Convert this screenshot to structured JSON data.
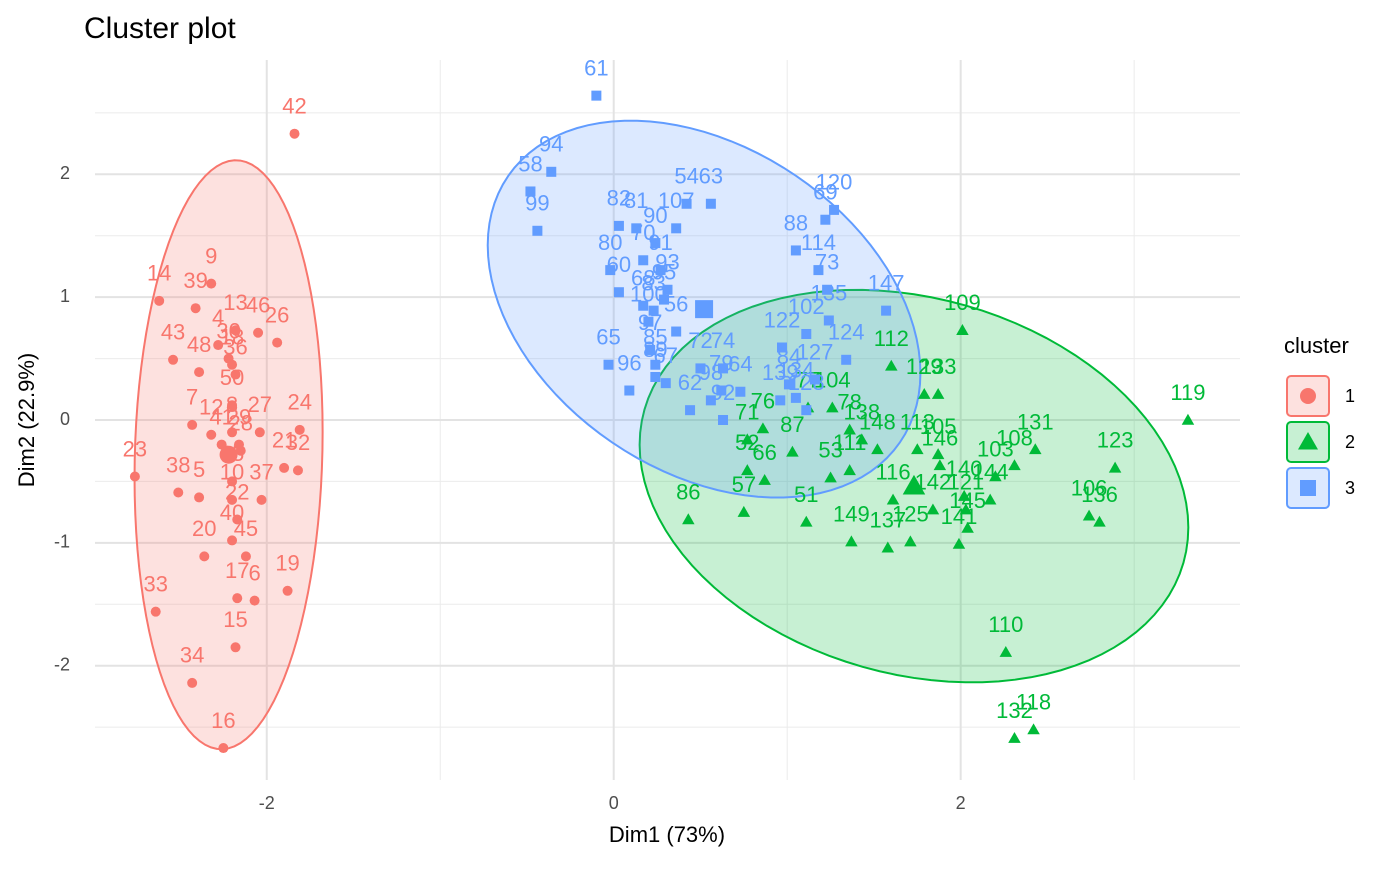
{
  "chart_data": {
    "type": "scatter",
    "title": "Cluster plot",
    "x_label": "Dim1 (73%)",
    "y_label": "Dim2 (22.9%)",
    "xlim": [
      -2.99,
      3.61
    ],
    "ylim": [
      -2.93,
      2.93
    ],
    "xticks": [
      -2,
      0,
      2
    ],
    "yticks": [
      -2,
      -1,
      0,
      1,
      2
    ],
    "grid": true,
    "legend_title": "cluster",
    "legend_position": "right",
    "series": [
      {
        "name": "1",
        "color": "#F8766D",
        "shape": "circle",
        "labels": [
          "42",
          "9",
          "14",
          "39",
          "13",
          "46",
          "26",
          "43",
          "4",
          "48",
          "30",
          "36",
          "7",
          "50",
          "12",
          "24",
          "27",
          "23",
          "38",
          "5",
          "37",
          "32",
          "21",
          "22",
          "40",
          "20",
          "45",
          "17",
          "6",
          "19",
          "33",
          "15",
          "34",
          "16",
          "18",
          "28",
          "41",
          "8",
          "10",
          "35",
          "29"
        ],
        "x": [
          -1.84,
          -2.32,
          -2.62,
          -2.41,
          -2.18,
          -2.05,
          -1.94,
          -2.54,
          -2.28,
          -2.39,
          -2.22,
          -2.18,
          -2.43,
          -2.2,
          -2.32,
          -1.81,
          -2.04,
          -2.76,
          -2.51,
          -2.39,
          -2.03,
          -1.82,
          -1.9,
          -2.17,
          -2.2,
          -2.36,
          -2.12,
          -2.17,
          -2.07,
          -1.88,
          -2.64,
          -2.18,
          -2.43,
          -2.25,
          -2.2,
          -2.15,
          -2.26,
          -2.2,
          -2.2,
          -2.2,
          -2.16
        ],
        "values": [
          2.33,
          1.11,
          0.97,
          0.91,
          0.73,
          0.71,
          0.63,
          0.49,
          0.61,
          0.39,
          0.5,
          0.37,
          -0.04,
          0.12,
          -0.12,
          -0.08,
          -0.1,
          -0.46,
          -0.59,
          -0.63,
          -0.65,
          -0.41,
          -0.39,
          -0.81,
          -0.98,
          -1.11,
          -1.11,
          -1.45,
          -1.47,
          -1.39,
          -1.56,
          -1.85,
          -2.14,
          -2.67,
          0.45,
          -0.25,
          -0.2,
          -0.1,
          -0.65,
          -0.5,
          -0.2
        ]
      },
      {
        "name": "2",
        "color": "#00BA38",
        "shape": "triangle",
        "labels": [
          "109",
          "119",
          "131",
          "123",
          "108",
          "106",
          "136",
          "110",
          "118",
          "132",
          "112",
          "129",
          "133",
          "104",
          "77",
          "71",
          "76",
          "52",
          "66",
          "87",
          "57",
          "86",
          "51",
          "53",
          "111",
          "138",
          "78",
          "148",
          "116",
          "149",
          "137",
          "125",
          "105",
          "146",
          "103",
          "140",
          "144",
          "121",
          "145",
          "141",
          "142",
          "113"
        ],
        "x": [
          2.01,
          3.31,
          2.43,
          2.89,
          2.31,
          2.74,
          2.8,
          2.26,
          2.42,
          2.31,
          1.6,
          1.79,
          1.87,
          1.26,
          1.12,
          0.77,
          0.86,
          0.77,
          0.87,
          1.03,
          0.75,
          0.43,
          1.11,
          1.25,
          1.36,
          1.43,
          1.36,
          1.52,
          1.61,
          1.37,
          1.58,
          1.71,
          1.87,
          1.88,
          2.2,
          2.02,
          2.17,
          2.03,
          2.04,
          1.99,
          1.84,
          1.75
        ],
        "values": [
          0.73,
          0.0,
          -0.24,
          -0.39,
          -0.37,
          -0.78,
          -0.83,
          -1.89,
          -2.52,
          -2.59,
          0.44,
          0.21,
          0.21,
          0.1,
          0.1,
          -0.16,
          -0.07,
          -0.41,
          -0.49,
          -0.26,
          -0.75,
          -0.81,
          -0.83,
          -0.47,
          -0.41,
          -0.16,
          -0.08,
          -0.24,
          -0.65,
          -0.99,
          -1.04,
          -0.99,
          -0.28,
          -0.37,
          -0.46,
          -0.62,
          -0.65,
          -0.73,
          -0.88,
          -1.01,
          -0.73,
          -0.24
        ]
      },
      {
        "name": "3",
        "color": "#619CFF",
        "shape": "square",
        "labels": [
          "61",
          "94",
          "58",
          "99",
          "82",
          "81",
          "107",
          "54",
          "63",
          "120",
          "69",
          "88",
          "114",
          "90",
          "70",
          "80",
          "60",
          "91",
          "93",
          "68",
          "83",
          "95",
          "100",
          "56",
          "65",
          "97",
          "85",
          "67",
          "96",
          "89",
          "62",
          "72",
          "74",
          "79",
          "64",
          "98",
          "92",
          "147",
          "122",
          "102",
          "135",
          "124",
          "127",
          "84",
          "134",
          "128",
          "139",
          "73"
        ],
        "x": [
          -0.1,
          -0.36,
          -0.48,
          -0.44,
          0.03,
          0.13,
          0.36,
          0.42,
          0.56,
          1.27,
          1.22,
          1.05,
          1.18,
          0.24,
          0.17,
          -0.02,
          0.03,
          0.27,
          0.31,
          0.17,
          0.23,
          0.29,
          0.2,
          0.36,
          -0.03,
          0.21,
          0.24,
          0.3,
          0.09,
          0.24,
          0.44,
          0.5,
          0.63,
          0.62,
          0.73,
          0.56,
          0.63,
          1.57,
          0.97,
          1.11,
          1.24,
          1.34,
          1.16,
          1.01,
          1.05,
          1.11,
          0.96,
          1.23
        ],
        "values": [
          2.64,
          2.02,
          1.86,
          1.54,
          1.58,
          1.56,
          1.56,
          1.76,
          1.76,
          1.71,
          1.63,
          1.38,
          1.22,
          1.44,
          1.3,
          1.22,
          1.04,
          1.22,
          1.06,
          0.93,
          0.89,
          0.98,
          0.8,
          0.72,
          0.45,
          0.57,
          0.45,
          0.3,
          0.24,
          0.35,
          0.08,
          0.42,
          0.42,
          0.24,
          0.23,
          0.16,
          0.0,
          0.89,
          0.59,
          0.7,
          0.81,
          0.49,
          0.33,
          0.29,
          0.18,
          0.08,
          0.16,
          1.06
        ]
      }
    ]
  }
}
